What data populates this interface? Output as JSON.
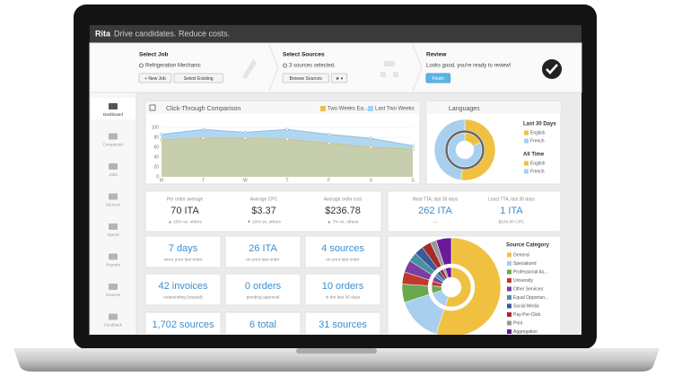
{
  "topbar": {
    "brand": "Rita",
    "tagline": "Drive candidates. Reduce costs."
  },
  "steps": [
    {
      "title": "Select Job",
      "text": "Refrigeration Mechanic",
      "buttons": [
        "+ New Job",
        "Select Existing"
      ]
    },
    {
      "title": "Select Sources",
      "text": "3 sources selected.",
      "buttons": [
        "Browse Sources",
        "★ ▾"
      ]
    },
    {
      "title": "Review",
      "text": "Looks good, you're ready to review!",
      "buttons": [
        "Finish"
      ]
    }
  ],
  "sidebar": [
    "Dashboard",
    "Companies",
    "Jobs",
    "Sources",
    "Spend",
    "Reports",
    "Invoices",
    "Feedback"
  ],
  "summary": [
    {
      "label": "Per order average",
      "value": "70 ITA",
      "note": "▲ 25% vs. others"
    },
    {
      "label": "Average CPC",
      "value": "$3.37",
      "note": "▼ 10% vs. others"
    },
    {
      "label": "Average order cost",
      "value": "$236.78",
      "note": "▲ 7% vs. others"
    }
  ],
  "tta": [
    {
      "label": "Most TTA, last 30 days",
      "value": "262 ITA",
      "note": "—"
    },
    {
      "label": "Least TTA, last 30 days",
      "value": "1 ITA",
      "note": "$120.00 CPC"
    }
  ],
  "tiles": [
    [
      {
        "value": "7 days",
        "note": "since your last order"
      },
      {
        "value": "26 ITA",
        "note": "on your last order"
      },
      {
        "value": "4 sources",
        "note": "on your last order"
      }
    ],
    [
      {
        "value": "42 invoices",
        "note": "outstanding (unpaid)"
      },
      {
        "value": "0 orders",
        "note": "pending approval"
      },
      {
        "value": "10 orders",
        "note": "in the last 30 days"
      }
    ],
    [
      {
        "value": "1,702 sources"
      },
      {
        "value": "6 total"
      },
      {
        "value": "31 sources"
      }
    ]
  ],
  "chart_data": [
    {
      "type": "area",
      "title": "Click-Through Comparison",
      "categories": [
        "M",
        "T",
        "W",
        "T",
        "F",
        "S",
        "S"
      ],
      "series": [
        {
          "name": "Two Weeks Ea...",
          "color": "#e8c44a",
          "values": [
            75,
            78,
            78,
            76,
            68,
            60,
            56
          ]
        },
        {
          "name": "Last Two Weeks",
          "color": "#a9d1ee",
          "values": [
            86,
            96,
            90,
            96,
            86,
            78,
            63
          ]
        }
      ],
      "ylim": [
        0,
        100
      ],
      "yticks": [
        0,
        20,
        40,
        60,
        80,
        100
      ],
      "grid": true
    },
    {
      "type": "donut",
      "title": "Languages",
      "categories": [
        "English",
        "French"
      ],
      "colors": [
        "#f0c040",
        "#a9cfee"
      ],
      "series": [
        {
          "name": "Last 30 Days",
          "values": [
            52,
            48
          ]
        },
        {
          "name": "All Time",
          "values": [
            18,
            82
          ]
        }
      ]
    },
    {
      "type": "donut",
      "title": "Source Category",
      "categories": [
        "General",
        "Specialized",
        "Professional As...",
        "University",
        "Other Services",
        "Equal Opportun...",
        "Social Media",
        "Pay-Per-Click",
        "Print",
        "Aggregation"
      ],
      "colors": [
        "#f0c040",
        "#a9cfee",
        "#6aa84f",
        "#c0392b",
        "#7b3fa0",
        "#4a90a4",
        "#3c5a99",
        "#a52a2a",
        "#999999",
        "#6a1b9a"
      ],
      "values": [
        55,
        15,
        6,
        4,
        4,
        3,
        3,
        3,
        2,
        5
      ]
    }
  ]
}
